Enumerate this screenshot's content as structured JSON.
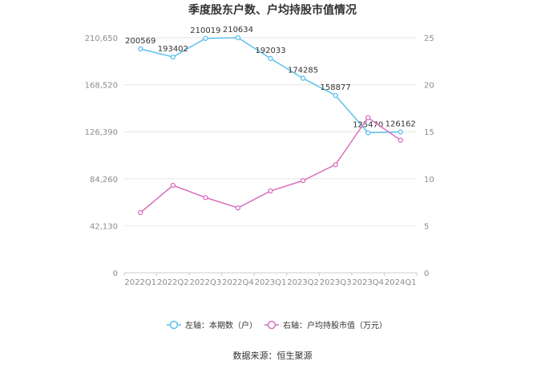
{
  "chart_data": {
    "type": "line",
    "title": "季度股东户数、户均持股市值情况",
    "categories": [
      "2022Q1",
      "2022Q2",
      "2022Q3",
      "2022Q4",
      "2023Q1",
      "2023Q2",
      "2023Q3",
      "2023Q4",
      "2024Q1"
    ],
    "left_axis": {
      "ylim": [
        0,
        210650
      ],
      "ticks": [
        "0",
        "42,130",
        "84,260",
        "126,390",
        "168,520",
        "210,650"
      ]
    },
    "right_axis": {
      "ylim": [
        0,
        25
      ],
      "ticks": [
        "0",
        "5",
        "10",
        "15",
        "20",
        "25"
      ]
    },
    "series": [
      {
        "name": "左轴：本期数（户）",
        "axis": "left",
        "color": "#5bc1ec",
        "values": [
          200569,
          193402,
          210019,
          210634,
          192033,
          174285,
          158877,
          125470,
          126162
        ],
        "labels": [
          "200569",
          "193402",
          "210019",
          "210634",
          "192033",
          "174285",
          "158877",
          "125470",
          "126162"
        ]
      },
      {
        "name": "右轴：户均持股市值（万元）",
        "axis": "right",
        "color": "#d86fbd",
        "values": [
          6.4,
          9.3,
          8.0,
          6.9,
          8.7,
          9.8,
          11.5,
          16.5,
          14.1
        ]
      }
    ],
    "grid": true,
    "legend": "bottom-center"
  },
  "footer": {
    "source": "数据来源：恒生聚源"
  }
}
